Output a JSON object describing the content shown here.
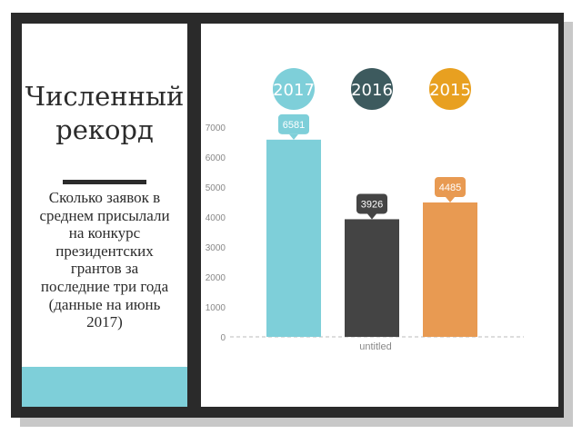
{
  "panel": {
    "title": "Численный рекорд",
    "description": "Сколько заявок в среднем присылали на конкурс президентских грантов за последние три года (данные на июнь 2017)"
  },
  "colors": {
    "frame": "#2a2a2a",
    "accent_band": "#7ecfd9",
    "bar_2017": "#7ecfd9",
    "bar_2016": "#444444",
    "bar_2015": "#e89a52",
    "badge_2017": "#7ecfd9",
    "badge_2016": "#3d5a5e",
    "badge_2015": "#e8a020",
    "axis_text": "#888888",
    "baseline": "#bbbbbb"
  },
  "chart_data": {
    "type": "bar",
    "categories": [
      "2017",
      "2016",
      "2015"
    ],
    "values": [
      6581,
      3926,
      4485
    ],
    "xlabel": "untitled",
    "ylabel": "",
    "ylim": [
      0,
      7000
    ],
    "yticks": [
      0,
      1000,
      2000,
      3000,
      4000,
      5000,
      6000,
      7000
    ],
    "data_labels": [
      "6581",
      "3926",
      "4485"
    ],
    "grid": false,
    "legend": "badges-above-bars"
  }
}
